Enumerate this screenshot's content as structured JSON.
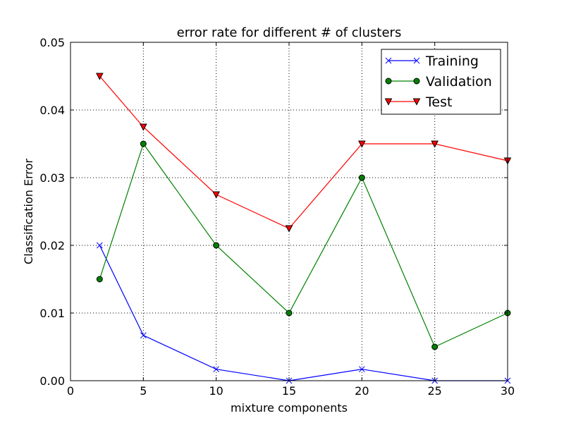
{
  "chart_data": {
    "type": "line",
    "title": "error rate for different # of clusters",
    "xlabel": "mixture components",
    "ylabel": "Classification Error",
    "xlim": [
      0,
      30
    ],
    "ylim": [
      0,
      0.05
    ],
    "xticks": [
      0,
      5,
      10,
      15,
      20,
      25,
      30
    ],
    "xtick_labels": [
      "0",
      "5",
      "10",
      "15",
      "20",
      "25",
      "30"
    ],
    "yticks": [
      0,
      0.01,
      0.02,
      0.03,
      0.04,
      0.05
    ],
    "ytick_labels": [
      "0.00",
      "0.01",
      "0.02",
      "0.03",
      "0.04",
      "0.05"
    ],
    "grid": true,
    "legend_position": "top-right",
    "x": [
      2,
      5,
      10,
      15,
      20,
      25,
      30
    ],
    "series": [
      {
        "name": "Training",
        "color": "#0000ff",
        "marker": "x",
        "values": [
          0.02,
          0.0067,
          0.0017,
          0.0,
          0.0017,
          0.0,
          0.0
        ]
      },
      {
        "name": "Validation",
        "color": "#008000",
        "marker": "circle",
        "values": [
          0.015,
          0.035,
          0.02,
          0.01,
          0.03,
          0.005,
          0.01
        ]
      },
      {
        "name": "Test",
        "color": "#ff0000",
        "marker": "triangle-down",
        "values": [
          0.045,
          0.0375,
          0.0275,
          0.0225,
          0.035,
          0.035,
          0.0325
        ]
      }
    ]
  }
}
